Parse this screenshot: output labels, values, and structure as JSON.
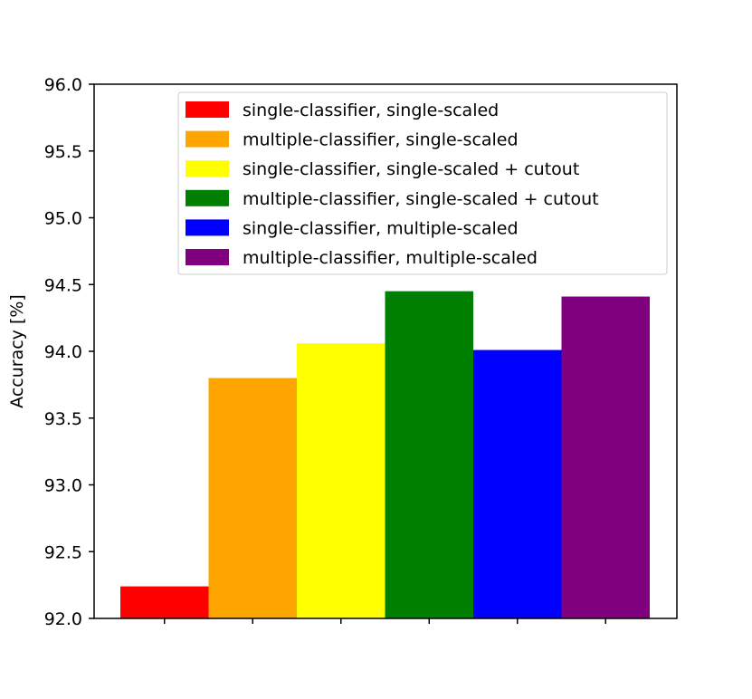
{
  "chart_data": {
    "type": "bar",
    "title": "",
    "xlabel": "",
    "ylabel": "Accuracy [%]",
    "ylim": [
      92.0,
      96.0
    ],
    "yticks": [
      "92.0",
      "92.5",
      "93.0",
      "93.5",
      "94.0",
      "94.5",
      "95.0",
      "95.5",
      "96.0"
    ],
    "grid": false,
    "legend_position": "top-right",
    "series": [
      {
        "name": "single-classifier, single-scaled",
        "value": 92.24,
        "color": "#ff0000"
      },
      {
        "name": "multiple-classifier, single-scaled",
        "value": 93.8,
        "color": "#ffa500"
      },
      {
        "name": "single-classifier, single-scaled + cutout",
        "value": 94.06,
        "color": "#ffff00"
      },
      {
        "name": "multiple-classifier, single-scaled + cutout",
        "value": 94.45,
        "color": "#008000"
      },
      {
        "name": "single-classifier, multiple-scaled",
        "value": 94.01,
        "color": "#0000ff"
      },
      {
        "name": "multiple-classifier, multiple-scaled",
        "value": 94.41,
        "color": "#800080"
      }
    ]
  }
}
